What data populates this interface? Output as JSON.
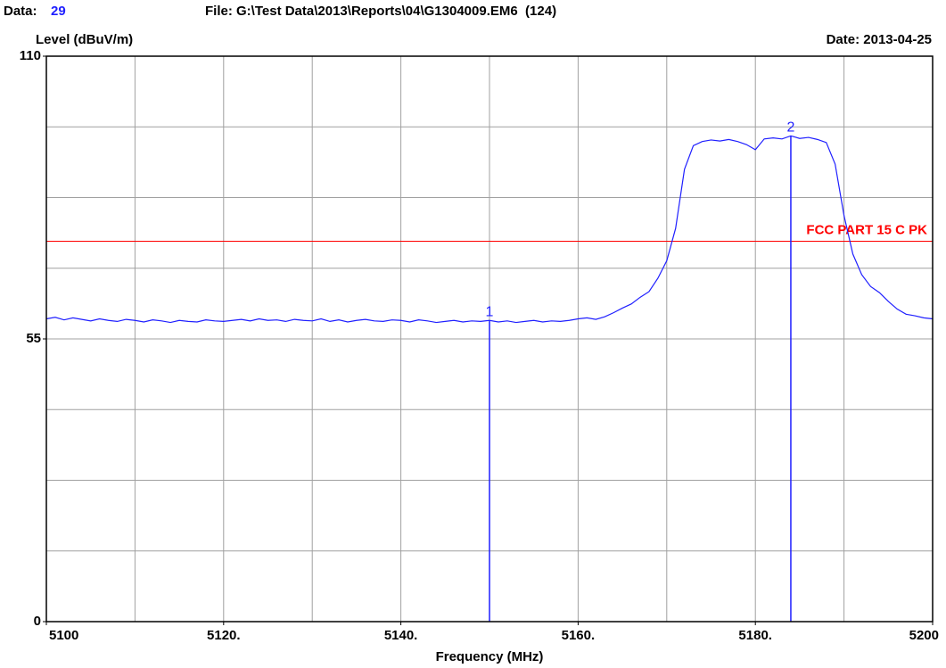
{
  "chart_data": {
    "type": "line",
    "header": {
      "data_label": "Data:",
      "data_number": "29",
      "file": "File: G:\\Test Data\\2013\\Reports\\04\\G1304009.EM6  (124)"
    },
    "ylabel": "Level (dBuV/m)",
    "date": "Date: 2013-04-25",
    "xlabel": "Frequency (MHz)",
    "xlim": [
      5100,
      5200
    ],
    "ylim": [
      0,
      110
    ],
    "xticks": [
      5100,
      {
        "value": 5120,
        "label": "5120."
      },
      {
        "value": 5140,
        "label": "5140."
      },
      {
        "value": 5160,
        "label": "5160."
      },
      {
        "value": 5180,
        "label": "5180."
      },
      5200
    ],
    "yticks": [
      0,
      55,
      110
    ],
    "xgrid": [
      5110,
      5120,
      5130,
      5140,
      5150,
      5160,
      5170,
      5180,
      5190
    ],
    "ygrid": [
      13.75,
      27.5,
      41.25,
      55,
      68.75,
      82.5,
      96.25
    ],
    "grid": true,
    "grid_color": "#a0a0a0",
    "x": [
      5100,
      5101,
      5102,
      5103,
      5104,
      5105,
      5106,
      5107,
      5108,
      5109,
      5110,
      5111,
      5112,
      5113,
      5114,
      5115,
      5116,
      5117,
      5118,
      5119,
      5120,
      5121,
      5122,
      5123,
      5124,
      5125,
      5126,
      5127,
      5128,
      5129,
      5130,
      5131,
      5132,
      5133,
      5134,
      5135,
      5136,
      5137,
      5138,
      5139,
      5140,
      5141,
      5142,
      5143,
      5144,
      5145,
      5146,
      5147,
      5148,
      5149,
      5150,
      5151,
      5152,
      5153,
      5154,
      5155,
      5156,
      5157,
      5158,
      5159,
      5160,
      5161,
      5162,
      5163,
      5164,
      5165,
      5166,
      5167,
      5168,
      5169,
      5170,
      5171,
      5172,
      5173,
      5174,
      5175,
      5176,
      5177,
      5178,
      5179,
      5180,
      5181,
      5182,
      5183,
      5184,
      5185,
      5186,
      5187,
      5188,
      5189,
      5190,
      5191,
      5192,
      5193,
      5194,
      5195,
      5196,
      5197,
      5198,
      5199,
      5200
    ],
    "series": [
      {
        "color": "#1f1fff",
        "values": [
          58.9,
          59.2,
          58.7,
          59.1,
          58.8,
          58.5,
          58.9,
          58.6,
          58.4,
          58.8,
          58.6,
          58.3,
          58.7,
          58.5,
          58.2,
          58.6,
          58.4,
          58.3,
          58.7,
          58.5,
          58.4,
          58.6,
          58.8,
          58.5,
          58.9,
          58.6,
          58.7,
          58.4,
          58.8,
          58.6,
          58.5,
          58.9,
          58.4,
          58.7,
          58.3,
          58.6,
          58.8,
          58.5,
          58.4,
          58.7,
          58.6,
          58.3,
          58.7,
          58.5,
          58.2,
          58.4,
          58.6,
          58.3,
          58.5,
          58.4,
          58.6,
          58.3,
          58.5,
          58.2,
          58.4,
          58.6,
          58.3,
          58.5,
          58.4,
          58.6,
          58.9,
          59.1,
          58.8,
          59.3,
          60.1,
          61.0,
          61.8,
          63.1,
          64.2,
          66.8,
          70.2,
          76.5,
          88.0,
          92.6,
          93.4,
          93.7,
          93.5,
          93.8,
          93.4,
          92.8,
          91.8,
          93.9,
          94.1,
          93.9,
          94.5,
          94.0,
          94.2,
          93.8,
          93.2,
          89.0,
          79.0,
          71.5,
          67.5,
          65.2,
          64.0,
          62.3,
          60.8,
          59.8,
          59.5,
          59.1,
          58.9
        ]
      }
    ],
    "limit": {
      "name": "FCC PART 15 C PK",
      "value": 74,
      "color": "#ff0000"
    },
    "markers": [
      {
        "label": "1",
        "x": 5150,
        "y": 58.6
      },
      {
        "label": "2",
        "x": 5184,
        "y": 94.5
      }
    ],
    "marker_color": "#1f1fff"
  }
}
